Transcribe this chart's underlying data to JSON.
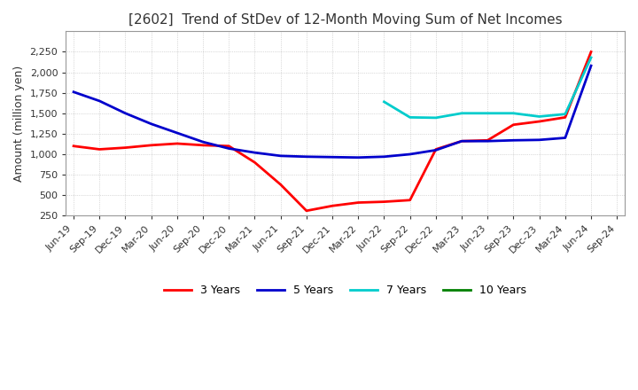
{
  "title": "[2602]  Trend of StDev of 12-Month Moving Sum of Net Incomes",
  "ylabel": "Amount (million yen)",
  "ylim": [
    250,
    2500
  ],
  "yticks": [
    250,
    500,
    750,
    1000,
    1250,
    1500,
    1750,
    2000,
    2250
  ],
  "background_color": "#ffffff",
  "grid_color": "#bbbbbb",
  "dates": [
    "Jun-19",
    "Sep-19",
    "Dec-19",
    "Mar-20",
    "Jun-20",
    "Sep-20",
    "Dec-20",
    "Mar-21",
    "Jun-21",
    "Sep-21",
    "Dec-21",
    "Mar-22",
    "Jun-22",
    "Sep-22",
    "Dec-22",
    "Mar-23",
    "Jun-23",
    "Sep-23",
    "Dec-23",
    "Mar-24",
    "Jun-24",
    "Sep-24"
  ],
  "series": {
    "3 Years": {
      "color": "#ff0000",
      "data": [
        1100,
        1060,
        1080,
        1110,
        1130,
        1110,
        1100,
        900,
        630,
        310,
        370,
        410,
        420,
        440,
        1060,
        1160,
        1170,
        1360,
        1400,
        1450,
        2250,
        null
      ]
    },
    "5 Years": {
      "color": "#0000cc",
      "data": [
        1760,
        1650,
        1500,
        1370,
        1260,
        1150,
        1070,
        1020,
        980,
        970,
        965,
        960,
        970,
        1000,
        1050,
        1160,
        1160,
        1170,
        1175,
        1200,
        2080,
        null
      ]
    },
    "7 Years": {
      "color": "#00cccc",
      "data": [
        null,
        null,
        null,
        null,
        null,
        null,
        null,
        null,
        null,
        null,
        null,
        null,
        1640,
        1450,
        1445,
        1500,
        1500,
        1500,
        1460,
        1490,
        2180,
        null
      ]
    },
    "10 Years": {
      "color": "#008000",
      "data": [
        null,
        null,
        null,
        null,
        null,
        null,
        null,
        null,
        null,
        null,
        null,
        null,
        null,
        null,
        null,
        null,
        null,
        null,
        null,
        null,
        null,
        null
      ]
    }
  }
}
